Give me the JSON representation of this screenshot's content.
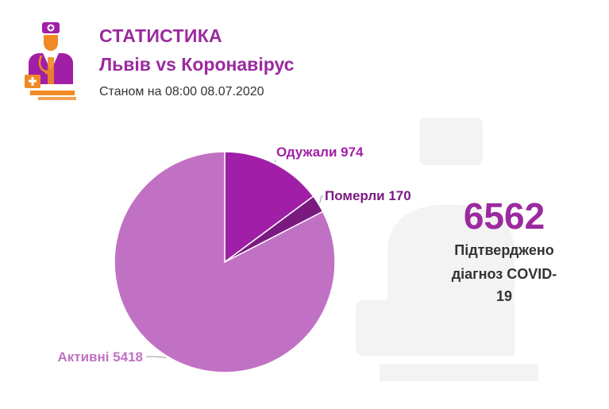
{
  "header": {
    "title": "СТАТИСТИКА",
    "subtitle": "Львів vs Коронавірус",
    "date": "Станом на 08:00 08.07.2020"
  },
  "icons": {
    "logo": "doctor-icon",
    "watermark": "doctor-watermark-icon"
  },
  "total": {
    "value": "6562",
    "caption_line1": "Підтверджено",
    "caption_line2": "діагноз COVID-19"
  },
  "chart_data": {
    "type": "pie",
    "title": "",
    "slices": [
      {
        "label": "Одужали 974",
        "name": "Одужали",
        "value": 974,
        "color": "#a11fa6",
        "label_color": "#a11fa6"
      },
      {
        "label": "Померли 170",
        "name": "Померли",
        "value": 170,
        "color": "#7a1a80",
        "label_color": "#7a1a80"
      },
      {
        "label": "Активні 5418",
        "name": "Активні",
        "value": 5418,
        "color": "#c171c3",
        "label_color": "#c171c3"
      }
    ],
    "start": "top",
    "direction": "clockwise",
    "legend": "none"
  }
}
